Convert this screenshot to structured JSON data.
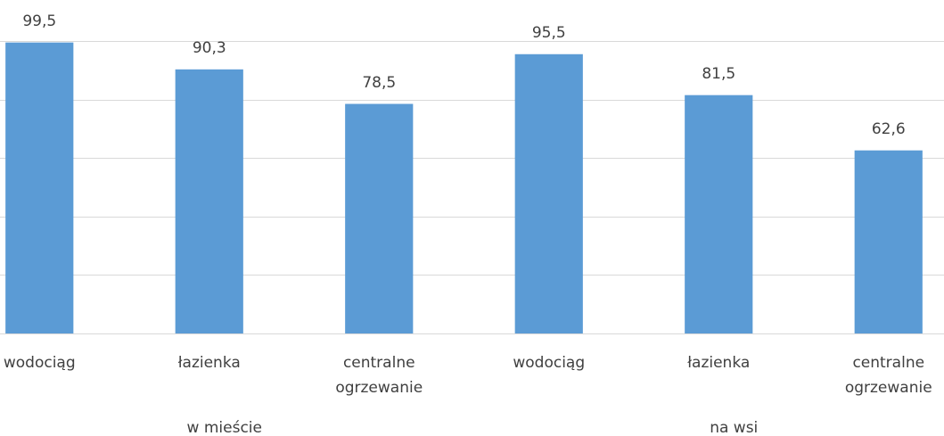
{
  "chart_data": {
    "type": "bar",
    "categories": [
      "wodociąg",
      "łazienka",
      "centralne ogrzewanie",
      "wodociąg",
      "łazienka",
      "centralne ogrzewanie"
    ],
    "group_labels": [
      "w mieście",
      "na wsi"
    ],
    "values": [
      99.5,
      90.3,
      78.5,
      95.5,
      81.5,
      62.6
    ],
    "value_labels": [
      "99,5",
      "90,3",
      "78,5",
      "95,5",
      "81,5",
      "62,6"
    ],
    "color": "#5b9bd5",
    "ylim": [
      0,
      100
    ],
    "yticks": [
      0,
      20,
      40,
      60,
      80,
      100
    ],
    "grid": true
  }
}
